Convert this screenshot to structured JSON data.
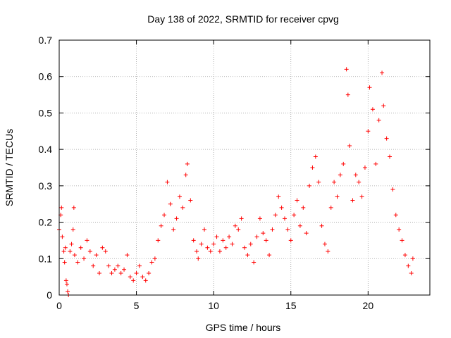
{
  "chart_data": {
    "type": "scatter",
    "title": "Day 138 of 2022, SRMTID for receiver cpvg",
    "xlabel": "GPS time / hours",
    "ylabel": "SRMTID / TECUs",
    "xlim": [
      0,
      24
    ],
    "ylim": [
      0,
      0.7
    ],
    "x_ticks": [
      0,
      5,
      10,
      15,
      20
    ],
    "x_tick_labels": [
      "0",
      "5",
      "10",
      "15",
      "20"
    ],
    "y_ticks": [
      0,
      0.1,
      0.2,
      0.3,
      0.4,
      0.5,
      0.6,
      0.7
    ],
    "y_tick_labels": [
      "0",
      "0.1",
      "0.2",
      "0.3",
      "0.4",
      "0.5",
      "0.6",
      "0.7"
    ],
    "grid": true,
    "marker": "+",
    "color": "#ff0000",
    "series": [
      {
        "name": "SRMTID",
        "points": [
          [
            0.0,
            0.18
          ],
          [
            0.1,
            0.22
          ],
          [
            0.15,
            0.24
          ],
          [
            0.2,
            0.16
          ],
          [
            0.3,
            0.12
          ],
          [
            0.35,
            0.09
          ],
          [
            0.4,
            0.13
          ],
          [
            0.45,
            0.04
          ],
          [
            0.5,
            0.03
          ],
          [
            0.55,
            0.01
          ],
          [
            0.6,
            0.0
          ],
          [
            0.7,
            0.12
          ],
          [
            0.8,
            0.14
          ],
          [
            0.9,
            0.18
          ],
          [
            0.95,
            0.24
          ],
          [
            1.0,
            0.11
          ],
          [
            1.2,
            0.09
          ],
          [
            1.4,
            0.13
          ],
          [
            1.6,
            0.1
          ],
          [
            1.8,
            0.15
          ],
          [
            2.0,
            0.12
          ],
          [
            2.2,
            0.08
          ],
          [
            2.4,
            0.11
          ],
          [
            2.6,
            0.06
          ],
          [
            2.8,
            0.13
          ],
          [
            3.0,
            0.12
          ],
          [
            3.2,
            0.08
          ],
          [
            3.4,
            0.06
          ],
          [
            3.6,
            0.07
          ],
          [
            3.8,
            0.08
          ],
          [
            4.0,
            0.06
          ],
          [
            4.2,
            0.07
          ],
          [
            4.4,
            0.11
          ],
          [
            4.6,
            0.05
          ],
          [
            4.8,
            0.04
          ],
          [
            5.0,
            0.06
          ],
          [
            5.2,
            0.08
          ],
          [
            5.4,
            0.05
          ],
          [
            5.6,
            0.04
          ],
          [
            5.8,
            0.06
          ],
          [
            6.0,
            0.09
          ],
          [
            6.2,
            0.1
          ],
          [
            6.4,
            0.15
          ],
          [
            6.6,
            0.19
          ],
          [
            6.8,
            0.22
          ],
          [
            7.0,
            0.31
          ],
          [
            7.2,
            0.25
          ],
          [
            7.4,
            0.18
          ],
          [
            7.6,
            0.21
          ],
          [
            7.8,
            0.27
          ],
          [
            8.0,
            0.24
          ],
          [
            8.2,
            0.33
          ],
          [
            8.3,
            0.36
          ],
          [
            8.5,
            0.26
          ],
          [
            8.7,
            0.15
          ],
          [
            8.9,
            0.12
          ],
          [
            9.0,
            0.1
          ],
          [
            9.2,
            0.14
          ],
          [
            9.4,
            0.18
          ],
          [
            9.6,
            0.13
          ],
          [
            9.8,
            0.12
          ],
          [
            10.0,
            0.14
          ],
          [
            10.2,
            0.16
          ],
          [
            10.4,
            0.12
          ],
          [
            10.6,
            0.15
          ],
          [
            10.8,
            0.13
          ],
          [
            11.0,
            0.16
          ],
          [
            11.2,
            0.14
          ],
          [
            11.4,
            0.19
          ],
          [
            11.6,
            0.18
          ],
          [
            11.8,
            0.21
          ],
          [
            12.0,
            0.13
          ],
          [
            12.2,
            0.11
          ],
          [
            12.4,
            0.14
          ],
          [
            12.6,
            0.09
          ],
          [
            12.8,
            0.16
          ],
          [
            13.0,
            0.21
          ],
          [
            13.2,
            0.17
          ],
          [
            13.4,
            0.15
          ],
          [
            13.6,
            0.11
          ],
          [
            13.8,
            0.18
          ],
          [
            14.0,
            0.22
          ],
          [
            14.2,
            0.27
          ],
          [
            14.4,
            0.24
          ],
          [
            14.6,
            0.21
          ],
          [
            14.8,
            0.18
          ],
          [
            15.0,
            0.15
          ],
          [
            15.2,
            0.22
          ],
          [
            15.4,
            0.26
          ],
          [
            15.6,
            0.19
          ],
          [
            15.8,
            0.24
          ],
          [
            16.0,
            0.17
          ],
          [
            16.2,
            0.3
          ],
          [
            16.4,
            0.35
          ],
          [
            16.6,
            0.38
          ],
          [
            16.8,
            0.31
          ],
          [
            17.0,
            0.19
          ],
          [
            17.2,
            0.14
          ],
          [
            17.4,
            0.12
          ],
          [
            17.6,
            0.24
          ],
          [
            17.8,
            0.31
          ],
          [
            18.0,
            0.27
          ],
          [
            18.2,
            0.33
          ],
          [
            18.4,
            0.36
          ],
          [
            18.6,
            0.62
          ],
          [
            18.7,
            0.55
          ],
          [
            18.8,
            0.41
          ],
          [
            19.0,
            0.26
          ],
          [
            19.2,
            0.33
          ],
          [
            19.4,
            0.31
          ],
          [
            19.6,
            0.27
          ],
          [
            19.8,
            0.35
          ],
          [
            20.0,
            0.45
          ],
          [
            20.1,
            0.57
          ],
          [
            20.3,
            0.51
          ],
          [
            20.5,
            0.36
          ],
          [
            20.7,
            0.48
          ],
          [
            20.9,
            0.61
          ],
          [
            21.0,
            0.52
          ],
          [
            21.2,
            0.43
          ],
          [
            21.4,
            0.38
          ],
          [
            21.6,
            0.29
          ],
          [
            21.8,
            0.22
          ],
          [
            22.0,
            0.18
          ],
          [
            22.2,
            0.15
          ],
          [
            22.4,
            0.11
          ],
          [
            22.6,
            0.08
          ],
          [
            22.8,
            0.06
          ],
          [
            22.9,
            0.1
          ]
        ]
      }
    ]
  }
}
